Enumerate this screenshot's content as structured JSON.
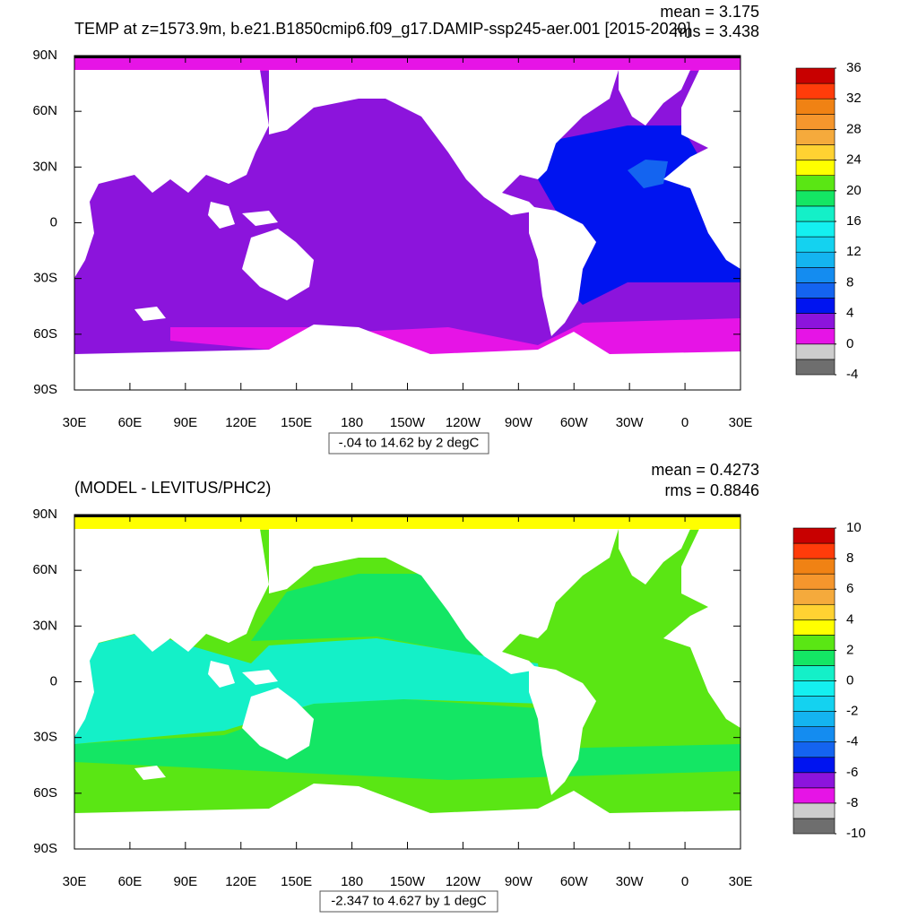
{
  "panels": [
    {
      "title": "TEMP at z=1573.9m, b.e21.B1850cmip6.f09_g17.DAMIP-ssp245-aer.001 [2015-2020]",
      "mean": "mean = 3.175",
      "rms": "rms = 3.438",
      "info": "-.04 to 14.62 by 2 degC",
      "xlim": [
        30,
        390
      ],
      "xticks": [
        {
          "value": 30,
          "label": "30E"
        },
        {
          "value": 60,
          "label": "60E"
        },
        {
          "value": 90,
          "label": "90E"
        },
        {
          "value": 120,
          "label": "120E"
        },
        {
          "value": 150,
          "label": "150E"
        },
        180,
        {
          "value": 210,
          "label": "150W"
        },
        {
          "value": 240,
          "label": "120W"
        },
        {
          "value": 270,
          "label": "90W"
        },
        {
          "value": 300,
          "label": "60W"
        },
        {
          "value": 330,
          "label": "30W"
        },
        {
          "value": 360,
          "label": "0"
        },
        {
          "value": 390,
          "label": "30E"
        }
      ],
      "ylim": [
        -90,
        90
      ],
      "yticks": [
        {
          "value": 90,
          "label": "90N"
        },
        {
          "value": 60,
          "label": "60N"
        },
        {
          "value": 30,
          "label": "30N"
        },
        0,
        {
          "value": -30,
          "label": "30S"
        },
        {
          "value": -60,
          "label": "60S"
        },
        {
          "value": -90,
          "label": "90S"
        }
      ],
      "colorbar": {
        "lim": [
          -4,
          36
        ],
        "ticks": [
          36,
          32,
          28,
          24,
          20,
          16,
          12,
          8,
          4,
          0,
          -4
        ]
      }
    },
    {
      "title": "(MODEL - LEVITUS/PHC2)",
      "mean": "mean = 0.4273",
      "rms": "rms = 0.8846",
      "info": "-2.347 to 4.627 by 1 degC",
      "xlim": [
        30,
        390
      ],
      "xticks": [
        {
          "value": 30,
          "label": "30E"
        },
        {
          "value": 60,
          "label": "60E"
        },
        {
          "value": 90,
          "label": "90E"
        },
        {
          "value": 120,
          "label": "120E"
        },
        {
          "value": 150,
          "label": "150E"
        },
        180,
        {
          "value": 210,
          "label": "150W"
        },
        {
          "value": 240,
          "label": "120W"
        },
        {
          "value": 270,
          "label": "90W"
        },
        {
          "value": 300,
          "label": "60W"
        },
        {
          "value": 330,
          "label": "30W"
        },
        {
          "value": 360,
          "label": "0"
        },
        {
          "value": 390,
          "label": "30E"
        }
      ],
      "ylim": [
        -90,
        90
      ],
      "yticks": [
        {
          "value": 90,
          "label": "90N"
        },
        {
          "value": 60,
          "label": "60N"
        },
        {
          "value": 30,
          "label": "30N"
        },
        0,
        {
          "value": -30,
          "label": "30S"
        },
        {
          "value": -60,
          "label": "60S"
        },
        {
          "value": -90,
          "label": "90S"
        }
      ],
      "colorbar": {
        "lim": [
          -10,
          10
        ],
        "ticks": [
          10,
          8,
          6,
          4,
          2,
          0,
          -2,
          -4,
          -6,
          -8,
          -10
        ]
      }
    }
  ],
  "colors": [
    "#6e6e6e",
    "#cdcdcd",
    "#e614e6",
    "#8c14dc",
    "#0014f0",
    "#1464f0",
    "#148cf0",
    "#14b4f0",
    "#14d2f0",
    "#14f0f0",
    "#14f0c8",
    "#14e664",
    "#5ae614",
    "#ffff00",
    "#ffd232",
    "#f5aa3c",
    "#f5962d",
    "#f08214",
    "#ff3c0a",
    "#c80000"
  ]
}
